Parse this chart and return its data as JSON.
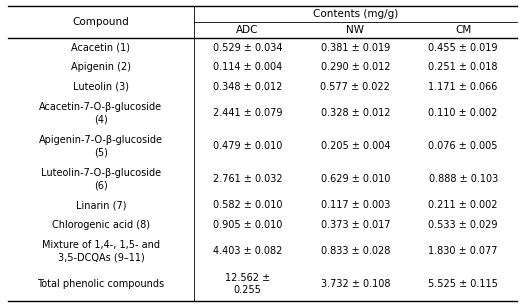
{
  "title": "Contents (mg/g)",
  "rows": [
    {
      "compound_lines": [
        "Acacetin (1)"
      ],
      "ADC": "0.529 ± 0.034",
      "NW": "0.381 ± 0.019",
      "CM": "0.455 ± 0.019",
      "double": false
    },
    {
      "compound_lines": [
        "Apigenin (2)"
      ],
      "ADC": "0.114 ± 0.004",
      "NW": "0.290 ± 0.012",
      "CM": "0.251 ± 0.018",
      "double": false
    },
    {
      "compound_lines": [
        "Luteolin (3)"
      ],
      "ADC": "0.348 ± 0.012",
      "NW": "0.577 ± 0.022",
      "CM": "1.171 ± 0.066",
      "double": false
    },
    {
      "compound_lines": [
        "Acacetin-7-O-β-glucoside",
        "(4)"
      ],
      "ADC": "2.441 ± 0.079",
      "NW": "0.328 ± 0.012",
      "CM": "0.110 ± 0.002",
      "double": true
    },
    {
      "compound_lines": [
        "Apigenin-7-O-β-glucoside",
        "(5)"
      ],
      "ADC": "0.479 ± 0.010",
      "NW": "0.205 ± 0.004",
      "CM": "0.076 ± 0.005",
      "double": true
    },
    {
      "compound_lines": [
        "Luteolin-7-O-β-glucoside",
        "(6)"
      ],
      "ADC": "2.761 ± 0.032",
      "NW": "0.629 ± 0.010",
      "CM": "0.888 ± 0.103",
      "double": true
    },
    {
      "compound_lines": [
        "Linarin (7)"
      ],
      "ADC": "0.582 ± 0.010",
      "NW": "0.117 ± 0.003",
      "CM": "0.211 ± 0.002",
      "double": false
    },
    {
      "compound_lines": [
        "Chlorogenic acid (8)"
      ],
      "ADC": "0.905 ± 0.010",
      "NW": "0.373 ± 0.017",
      "CM": "0.533 ± 0.029",
      "double": false
    },
    {
      "compound_lines": [
        "Mixture of 1,4-, 1,5- and",
        "3,5-DCQAs (9–11)"
      ],
      "ADC": "4.403 ± 0.082",
      "NW": "0.833 ± 0.028",
      "CM": "1.830 ± 0.077",
      "double": true
    },
    {
      "compound_lines": [
        "Total phenolic compounds"
      ],
      "ADC_lines": [
        "12.562 ±",
        "0.255"
      ],
      "ADC": "12.562 ±\n0.255",
      "NW": "3.732 ± 0.108",
      "CM": "5.525 ± 0.115",
      "double": true
    }
  ],
  "bg_color": "#ffffff",
  "text_color": "#000000",
  "font_size": 7.0,
  "header_font_size": 7.5
}
